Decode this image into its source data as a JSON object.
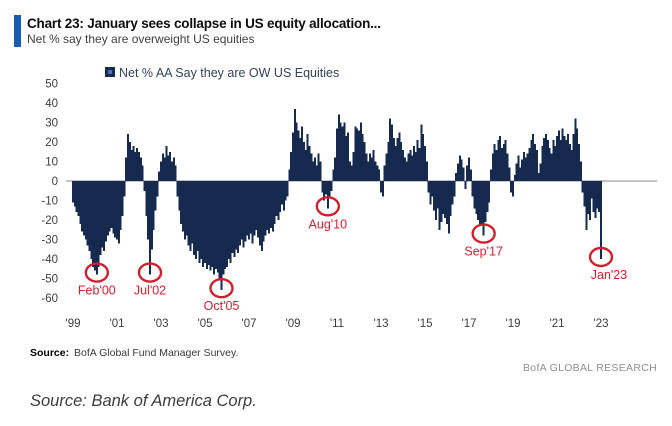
{
  "header": {
    "title": "Chart 23: January sees collapse in US equity allocation...",
    "subtitle": "Net % say they are overweight US equities",
    "accent_color": "#1a5bb0"
  },
  "legend": {
    "label": "Net % AA Say they are OW US Equities",
    "marker_outer_color": "#16294f",
    "marker_inner_color": "#4a72b8"
  },
  "chart_data": {
    "type": "bar",
    "title": "Net % AA Say they are OW US Equities",
    "x_start": "1999-01",
    "x_end": "2023-01",
    "frequency": "monthly",
    "x_tick_labels": [
      "'99",
      "'01",
      "'03",
      "'05",
      "'07",
      "'09",
      "'11",
      "'13",
      "'15",
      "'17",
      "'19",
      "'21",
      "'23"
    ],
    "y_ticks": [
      50,
      40,
      30,
      20,
      10,
      0,
      -10,
      -20,
      -30,
      -40,
      -50,
      -60
    ],
    "ylim": [
      -60,
      50
    ],
    "grid": false,
    "bar_color": "#16294f",
    "zero_line_color": "#8a8a8a",
    "annotation_color": "#d0202e",
    "values": [
      -11,
      -13,
      -16,
      -18,
      -22,
      -26,
      -28,
      -30,
      -33,
      -36,
      -40,
      -44,
      -46,
      -48,
      -44,
      -38,
      -34,
      -36,
      -31,
      -28,
      -26,
      -24,
      -27,
      -29,
      -30,
      -32,
      -25,
      -18,
      -8,
      12,
      24,
      20,
      16,
      18,
      15,
      17,
      15,
      12,
      8,
      -5,
      -18,
      -30,
      -48,
      -35,
      -25,
      -15,
      -8,
      5,
      10,
      14,
      12,
      18,
      13,
      15,
      10,
      12,
      8,
      -8,
      -15,
      -22,
      -26,
      -30,
      -28,
      -33,
      -36,
      -32,
      -38,
      -40,
      -36,
      -42,
      -40,
      -44,
      -42,
      -45,
      -43,
      -46,
      -44,
      -48,
      -45,
      -47,
      -50,
      -56,
      -48,
      -45,
      -44,
      -40,
      -42,
      -37,
      -39,
      -35,
      -37,
      -33,
      -30,
      -34,
      -31,
      -28,
      -30,
      -27,
      -32,
      -28,
      -25,
      -29,
      -33,
      -36,
      -31,
      -28,
      -25,
      -27,
      -24,
      -26,
      -22,
      -18,
      -20,
      -16,
      -12,
      -15,
      -10,
      -8,
      6,
      15,
      25,
      37,
      30,
      26,
      22,
      28,
      20,
      16,
      24,
      18,
      14,
      10,
      12,
      8,
      14,
      10,
      -6,
      -10,
      -7,
      -14,
      -9,
      -5,
      6,
      12,
      27,
      34,
      30,
      28,
      30,
      23,
      25,
      10,
      8,
      15,
      28,
      27,
      26,
      30,
      24,
      20,
      14,
      10,
      14,
      12,
      16,
      10,
      8,
      6,
      -6,
      -8,
      8,
      14,
      20,
      32,
      29,
      22,
      18,
      22,
      25,
      20,
      16,
      12,
      10,
      14,
      16,
      13,
      18,
      15,
      21,
      17,
      29,
      24,
      18,
      10,
      -6,
      -12,
      -8,
      -15,
      -20,
      -14,
      -25,
      -21,
      -17,
      -19,
      -22,
      -27,
      -18,
      -12,
      -8,
      4,
      9,
      13,
      11,
      7,
      -4,
      8,
      12,
      6,
      -8,
      -14,
      -17,
      -20,
      -23,
      -22,
      -28,
      -21,
      -16,
      -11,
      6,
      14,
      19,
      16,
      21,
      23,
      17,
      19,
      21,
      14,
      7,
      -6,
      -8,
      3,
      9,
      13,
      7,
      11,
      15,
      12,
      14,
      17,
      21,
      24,
      19,
      16,
      4,
      9,
      18,
      22,
      24,
      21,
      17,
      14,
      21,
      18,
      23,
      26,
      21,
      27,
      23,
      21,
      24,
      19,
      16,
      24,
      32,
      27,
      19,
      10,
      -6,
      -13,
      -25,
      -17,
      -20,
      -9,
      -16,
      -19,
      -14,
      -16,
      -40
    ],
    "annotations": [
      {
        "label": "Feb'00",
        "month_index": 13,
        "value": -48,
        "label_dx": 0
      },
      {
        "label": "Jul'02",
        "month_index": 42,
        "value": -48,
        "label_dx": 0
      },
      {
        "label": "Oct'05",
        "month_index": 81,
        "value": -56,
        "label_dx": 0
      },
      {
        "label": "Aug'10",
        "month_index": 139,
        "value": -14,
        "label_dx": 0
      },
      {
        "label": "Sep'17",
        "month_index": 224,
        "value": -28,
        "label_dx": 0
      },
      {
        "label": "Jan'23",
        "month_index": 288,
        "value": -40,
        "label_dx": 8
      }
    ]
  },
  "footer": {
    "source_bold": "Source:",
    "source_text": "BofA Global Fund Manager Survey.",
    "brand": "BofA GLOBAL RESEARCH"
  },
  "caption": "Source: Bank of America Corp."
}
